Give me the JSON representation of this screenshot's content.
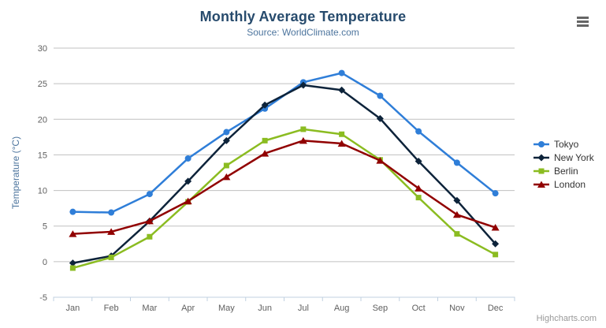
{
  "credits": {
    "label": "Highcharts.com"
  },
  "menu": {
    "icon": "hamburger-icon"
  },
  "chart_data": {
    "type": "line",
    "title": "Monthly Average Temperature",
    "subtitle": "Source: WorldClimate.com",
    "xlabel": "",
    "ylabel": "Temperature (°C)",
    "ylim": [
      -5,
      30
    ],
    "ytick_step": 5,
    "grid": true,
    "legend_position": "right",
    "categories": [
      "Jan",
      "Feb",
      "Mar",
      "Apr",
      "May",
      "Jun",
      "Jul",
      "Aug",
      "Sep",
      "Oct",
      "Nov",
      "Dec"
    ],
    "series": [
      {
        "name": "Tokyo",
        "color": "#2f7ed8",
        "marker": "circle",
        "values": [
          7.0,
          6.9,
          9.5,
          14.5,
          18.2,
          21.5,
          25.2,
          26.5,
          23.3,
          18.3,
          13.9,
          9.6
        ]
      },
      {
        "name": "New York",
        "color": "#0d233a",
        "marker": "diamond",
        "values": [
          -0.2,
          0.8,
          5.7,
          11.3,
          17.0,
          22.0,
          24.8,
          24.1,
          20.1,
          14.1,
          8.6,
          2.5
        ]
      },
      {
        "name": "Berlin",
        "color": "#8bbc21",
        "marker": "square",
        "values": [
          -0.9,
          0.6,
          3.5,
          8.4,
          13.5,
          17.0,
          18.6,
          17.9,
          14.3,
          9.0,
          3.9,
          1.0
        ]
      },
      {
        "name": "London",
        "color": "#910000",
        "marker": "triangle",
        "values": [
          3.9,
          4.2,
          5.7,
          8.5,
          11.9,
          15.2,
          17.0,
          16.6,
          14.2,
          10.3,
          6.6,
          4.8
        ]
      }
    ],
    "style": {
      "title_color": "#274b6d",
      "subtitle_color": "#4d759e",
      "axis_title_color": "#4d759e",
      "axis_label_color": "#606060",
      "grid_color": "#c0c0c0",
      "axis_line_color": "#c0d0e0",
      "legend_text_color": "#333333",
      "credits_color": "#999999"
    }
  }
}
